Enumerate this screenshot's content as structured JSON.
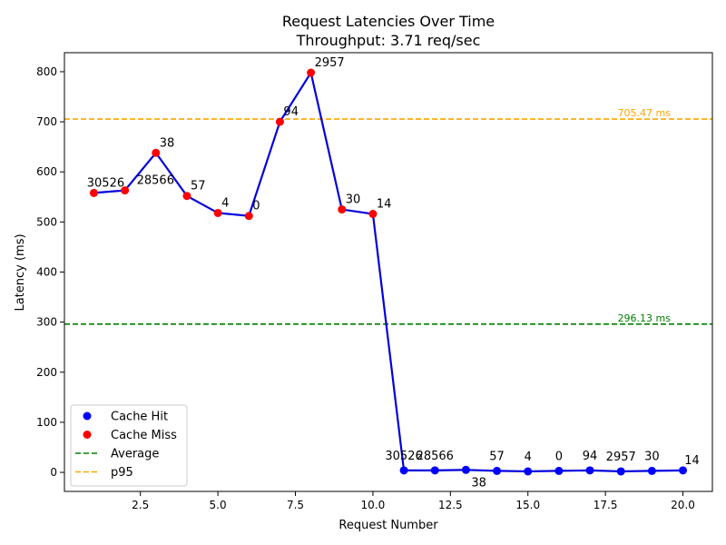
{
  "chart_data": {
    "type": "line",
    "title": "Request Latencies Over Time",
    "subtitle": "Throughput: 3.71 req/sec",
    "xlabel": "Request Number",
    "ylabel": "Latency (ms)",
    "xlim": [
      0.05,
      20.95
    ],
    "ylim": [
      -38,
      838
    ],
    "xticks": [
      2.5,
      5.0,
      7.5,
      10.0,
      12.5,
      15.0,
      17.5,
      20.0
    ],
    "xtick_labels": [
      "2.5",
      "5.0",
      "7.5",
      "10.0",
      "12.5",
      "15.0",
      "17.5",
      "20.0"
    ],
    "yticks": [
      0,
      100,
      200,
      300,
      400,
      500,
      600,
      700,
      800
    ],
    "ytick_labels": [
      "0",
      "100",
      "200",
      "300",
      "400",
      "500",
      "600",
      "700",
      "800"
    ],
    "grid": false,
    "legend_position": "lower-left",
    "line_color": "#0000dd",
    "points": [
      {
        "x": 1,
        "y": 558,
        "label": "30526",
        "status": "miss"
      },
      {
        "x": 2,
        "y": 563,
        "label": "28566",
        "status": "miss"
      },
      {
        "x": 3,
        "y": 638,
        "label": "38",
        "status": "miss"
      },
      {
        "x": 4,
        "y": 552,
        "label": "57",
        "status": "miss"
      },
      {
        "x": 5,
        "y": 518,
        "label": "4",
        "status": "miss"
      },
      {
        "x": 6,
        "y": 512,
        "label": "0",
        "status": "miss"
      },
      {
        "x": 7,
        "y": 700,
        "label": "94",
        "status": "miss"
      },
      {
        "x": 8,
        "y": 798,
        "label": "2957",
        "status": "miss"
      },
      {
        "x": 9,
        "y": 525,
        "label": "30",
        "status": "miss"
      },
      {
        "x": 10,
        "y": 516,
        "label": "14",
        "status": "miss"
      },
      {
        "x": 11,
        "y": 4,
        "label": "30526",
        "status": "hit"
      },
      {
        "x": 12,
        "y": 4,
        "label": "28566",
        "status": "hit"
      },
      {
        "x": 13,
        "y": 5,
        "label": "38",
        "status": "hit"
      },
      {
        "x": 14,
        "y": 3,
        "label": "57",
        "status": "hit"
      },
      {
        "x": 15,
        "y": 2,
        "label": "4",
        "status": "hit"
      },
      {
        "x": 16,
        "y": 3,
        "label": "0",
        "status": "hit"
      },
      {
        "x": 17,
        "y": 4,
        "label": "94",
        "status": "hit"
      },
      {
        "x": 18,
        "y": 2,
        "label": "2957",
        "status": "hit"
      },
      {
        "x": 19,
        "y": 3,
        "label": "30",
        "status": "hit"
      },
      {
        "x": 20,
        "y": 4,
        "label": "14",
        "status": "hit"
      }
    ],
    "reference_lines": [
      {
        "name": "Average",
        "value": 296.13,
        "label": "296.13 ms",
        "color": "#008000"
      },
      {
        "name": "p95",
        "value": 705.47,
        "label": "705.47 ms",
        "color": "#ffa500"
      }
    ],
    "legend": [
      {
        "label": "Cache Hit",
        "kind": "marker",
        "color": "#0000ff"
      },
      {
        "label": "Cache Miss",
        "kind": "marker",
        "color": "#ff0000"
      },
      {
        "label": "Average",
        "kind": "line",
        "color": "#008000"
      },
      {
        "label": "p95",
        "kind": "line",
        "color": "#ffa500"
      }
    ]
  }
}
